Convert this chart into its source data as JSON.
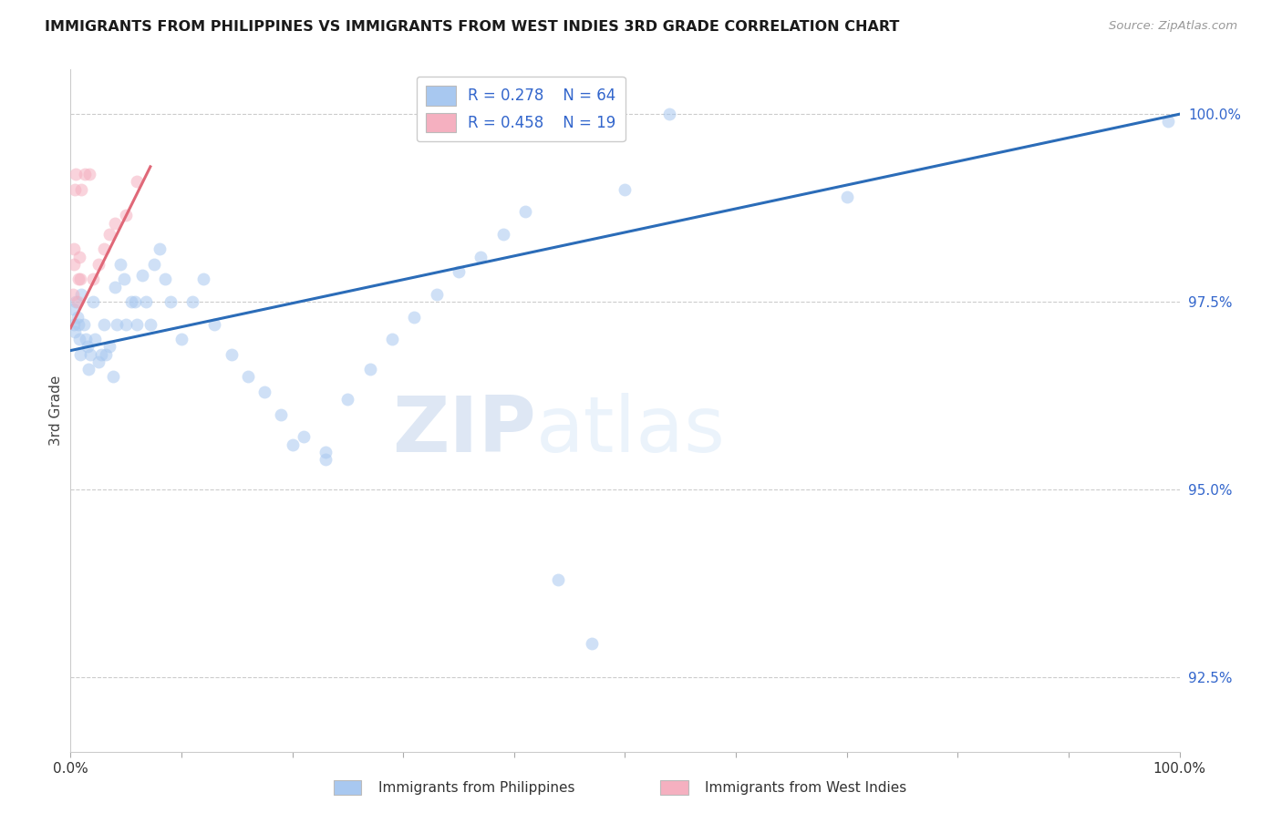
{
  "title": "IMMIGRANTS FROM PHILIPPINES VS IMMIGRANTS FROM WEST INDIES 3RD GRADE CORRELATION CHART",
  "source": "Source: ZipAtlas.com",
  "ylabel": "3rd Grade",
  "ytick_values": [
    1.0,
    0.975,
    0.95,
    0.925
  ],
  "watermark_zip": "ZIP",
  "watermark_atlas": "atlas",
  "legend_blue_R": "R = 0.278",
  "legend_blue_N": "N = 64",
  "legend_pink_R": "R = 0.458",
  "legend_pink_N": "N = 19",
  "blue_color": "#A8C8F0",
  "pink_color": "#F5B0C0",
  "blue_line_color": "#2B6CB8",
  "pink_line_color": "#E06878",
  "blue_trend_x": [
    0.0,
    1.0
  ],
  "blue_trend_y": [
    0.9685,
    1.0
  ],
  "pink_trend_x": [
    0.0,
    0.072
  ],
  "pink_trend_y": [
    0.9715,
    0.993
  ],
  "xlim": [
    0.0,
    1.0
  ],
  "ylim": [
    0.915,
    1.006
  ],
  "marker_size": 100,
  "marker_alpha": 0.55,
  "blue_x": [
    0.002,
    0.003,
    0.004,
    0.005,
    0.006,
    0.007,
    0.008,
    0.009,
    0.01,
    0.012,
    0.014,
    0.015,
    0.016,
    0.018,
    0.02,
    0.022,
    0.025,
    0.028,
    0.03,
    0.032,
    0.035,
    0.038,
    0.04,
    0.042,
    0.045,
    0.048,
    0.05,
    0.055,
    0.058,
    0.06,
    0.065,
    0.068,
    0.072,
    0.075,
    0.08,
    0.085,
    0.09,
    0.1,
    0.11,
    0.12,
    0.13,
    0.145,
    0.16,
    0.175,
    0.19,
    0.21,
    0.23,
    0.25,
    0.27,
    0.29,
    0.31,
    0.33,
    0.35,
    0.37,
    0.39,
    0.41,
    0.44,
    0.47,
    0.5,
    0.54,
    0.2,
    0.23,
    0.7,
    0.99
  ],
  "blue_y": [
    0.974,
    0.972,
    0.971,
    0.975,
    0.973,
    0.972,
    0.97,
    0.968,
    0.976,
    0.972,
    0.97,
    0.969,
    0.966,
    0.968,
    0.975,
    0.97,
    0.967,
    0.968,
    0.972,
    0.968,
    0.969,
    0.965,
    0.977,
    0.972,
    0.98,
    0.978,
    0.972,
    0.975,
    0.975,
    0.972,
    0.9785,
    0.975,
    0.972,
    0.98,
    0.982,
    0.978,
    0.975,
    0.97,
    0.975,
    0.978,
    0.972,
    0.968,
    0.965,
    0.963,
    0.96,
    0.957,
    0.955,
    0.962,
    0.966,
    0.97,
    0.973,
    0.976,
    0.979,
    0.981,
    0.984,
    0.987,
    0.938,
    0.9295,
    0.99,
    1.0,
    0.956,
    0.954,
    0.989,
    0.999
  ],
  "pink_x": [
    0.002,
    0.003,
    0.003,
    0.004,
    0.005,
    0.006,
    0.007,
    0.008,
    0.009,
    0.01,
    0.013,
    0.017,
    0.02,
    0.025,
    0.03,
    0.035,
    0.04,
    0.05,
    0.06
  ],
  "pink_y": [
    0.976,
    0.982,
    0.98,
    0.99,
    0.992,
    0.975,
    0.978,
    0.981,
    0.978,
    0.99,
    0.992,
    0.992,
    0.978,
    0.98,
    0.982,
    0.984,
    0.9855,
    0.9865,
    0.991
  ],
  "bottom_label_blue": "Immigrants from Philippines",
  "bottom_label_pink": "Immigrants from West Indies"
}
